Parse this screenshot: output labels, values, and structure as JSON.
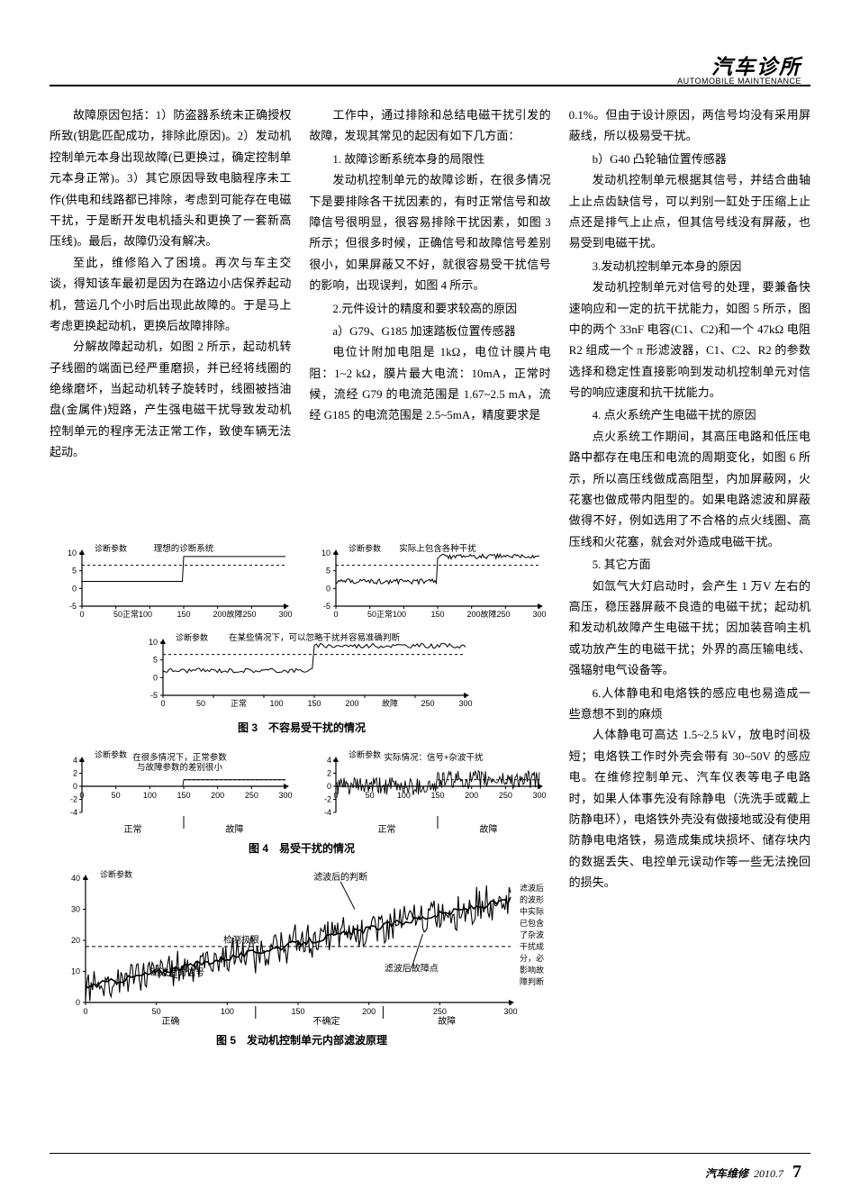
{
  "header": {
    "title": "汽车诊所",
    "subtitle": "AUTOMOBILE MAINTENANCE"
  },
  "col1": {
    "p1": "故障原因包括：1）防盗器系统未正确授权所致(钥匙匹配成功，排除此原因)。2）发动机控制单元本身出现故障(已更换过，确定控制单元本身正常)。3）其它原因导致电脑程序未工作(供电和线路都已排除，考虑到可能存在电磁干扰，于是断开发电机插头和更换了一套新高压线)。最后，故障仍没有解决。",
    "p2": "至此，维修陷入了困境。再次与车主交谈，得知该车最初是因为在路边小店保养起动机，营运几个小时后出现此故障的。于是马上考虑更换起动机，更换后故障排除。",
    "p3": "分解故障起动机，如图 2 所示，起动机转子线圈的端面已经严重磨损，并已经将线圈的绝缘磨坏，当起动机转子旋转时，线圈被挡油盘(金属件)短路，产生强电磁干扰导致发动机控制单元的程序无法正常工作，致使车辆无法起动。"
  },
  "col2": {
    "p1": "工作中，通过排除和总结电磁干扰引发的故障，发现其常见的起因有如下几方面：",
    "h1": "1. 故障诊断系统本身的局限性",
    "p2": "发动机控制单元的故障诊断，在很多情况下是要排除各干扰因素的，有时正常信号和故障信号很明显，很容易排除干扰因素，如图 3 所示；但很多时候，正确信号和故障信号差别很小，如果屏蔽又不好，就很容易受干扰信号的影响，出现误判，如图 4 所示。",
    "h2": "2.元件设计的精度和要求较高的原因",
    "h2a": "a）G79、G185 加速踏板位置传感器",
    "p3": "电位计附加电阻是 1kΩ，电位计膜片电阻：1~2 kΩ，膜片最大电流：10mA，正常时候，流经 G79 的电流范围是 1.67~2.5 mA，流经 G185 的电流范围是 2.5~5mA，精度要求是"
  },
  "col3": {
    "p1": "0.1%。但由于设计原因，两信号均没有采用屏蔽线，所以极易受干扰。",
    "h2b": "b）G40 凸轮轴位置传感器",
    "p2": "发动机控制单元根据其信号，并结合曲轴上止点齿缺信号，可以判别一缸处于压缩上止点还是排气上止点，但其信号线没有屏蔽，也易受到电磁干扰。",
    "h3": "3.发动机控制单元本身的原因",
    "p3": "发动机控制单元对信号的处理，要兼备快速响应和一定的抗干扰能力，如图 5 所示，图中的两个 33nF 电容(C1、C2)和一个 47kΩ 电阻 R2 组成一个 π 形滤波器，C1、C2、R2 的参数选择和稳定性直接影响到发动机控制单元对信号的响应速度和抗干扰能力。",
    "h4": "4. 点火系统产生电磁干扰的原因",
    "p4": "点火系统工作期间，其高压电路和低压电路中都存在电压和电流的周期变化，如图 6 所示，所以高压线做成高阻型，内加屏蔽网，火花塞也做成带内阻型的。如果电路滤波和屏蔽做得不好，例如选用了不合格的点火线圈、高压线和火花塞，就会对外造成电磁干扰。",
    "h5": "5. 其它方面",
    "p5": "如氙气大灯启动时，会产生 1 万V 左右的高压，稳压器屏蔽不良造的电磁干扰；起动机和发动机故障产生电磁干扰；因加装音响主机或功放产生的电磁干扰；外界的高压输电线、强辐射电气设备等。",
    "h6": "6.人体静电和电烙铁的感应电也易造成一些意想不到的麻烦",
    "p6": "人体静电可高达 1.5~2.5 kV，放电时间极短；电烙铁工作时外壳会带有 30~50V 的感应电。在维修控制单元、汽车仪表等电子电路时，如果人体事先没有除静电（洗洗手或戴上防静电环），电烙铁外壳没有做接地或没有使用防静电电烙铁，易造成集成块损坏、储存块内的数据丢失、电控单元误动作等一些无法挽回的损失。"
  },
  "figures": {
    "fig3": {
      "caption": "图 3　不容易受干扰的情况",
      "ylabel": "诊断参数",
      "chart1_label": "理想的诊断系统",
      "chart2_label": "实际上包含各种干扰",
      "chart3_label": "在某些情况下，可以忽略干扰并容易准确判断",
      "xticks": [
        0,
        50,
        100,
        150,
        200,
        250,
        300
      ],
      "xlabels_a": [
        "0",
        "50正常100",
        "150",
        "200故障250",
        "300"
      ],
      "yticks": [
        -5,
        0,
        5,
        10
      ],
      "xlabels_b": [
        "0",
        "50",
        "正常",
        "100",
        "150",
        "200",
        "故障",
        "250",
        "300"
      ],
      "step_x": 150,
      "low_val": 2,
      "high_val": 9,
      "noise_amp": 1.3,
      "line_color": "#000000",
      "bg": "#ffffff"
    },
    "fig4": {
      "caption": "图 4　易受干扰的情况",
      "ylabel": "诊断参数",
      "chart1_label_a": "在很多情况下，正常参数",
      "chart1_label_b": "与故障参数的差别很小",
      "chart2_label": "实际情况：信号+杂波干扰",
      "xticks": [
        0,
        50,
        100,
        150,
        200,
        250,
        300
      ],
      "xlabels": [
        "0",
        "50",
        "100",
        "150",
        "200",
        "250",
        "300"
      ],
      "region_a": "正常",
      "region_b": "故障",
      "yticks": [
        -4,
        -2,
        0,
        2,
        4
      ],
      "step_x": 150,
      "low_val": 0,
      "high_val": 1,
      "noise_amp": 2.8,
      "line_color": "#000000"
    },
    "fig5": {
      "caption": "图 5　发动机控制单元内部滤波原理",
      "ylabel": "诊断参数",
      "label_left_top": "滤波后的判断",
      "label_left_mid": "检测极限",
      "label_left_bot": "滤波后的信号",
      "label_right": "滤波后故障点",
      "side_text_lines": [
        "滤波后",
        "的波形",
        "中实际",
        "已包含",
        "了杂波",
        "干扰成",
        "分，必",
        "影响故",
        "障判断"
      ],
      "xticks": [
        0,
        50,
        100,
        150,
        200,
        250,
        300
      ],
      "region_a": "正确",
      "region_b": "不确定",
      "region_c": "故障",
      "yticks": [
        0,
        10,
        20,
        30,
        40
      ],
      "threshold": 18,
      "line_color": "#000000"
    }
  },
  "footer": {
    "magazine": "汽车维修",
    "date": "2010.7",
    "page": "7"
  },
  "colors": {
    "text": "#000000",
    "bg": "#ffffff",
    "rule": "#000000"
  }
}
